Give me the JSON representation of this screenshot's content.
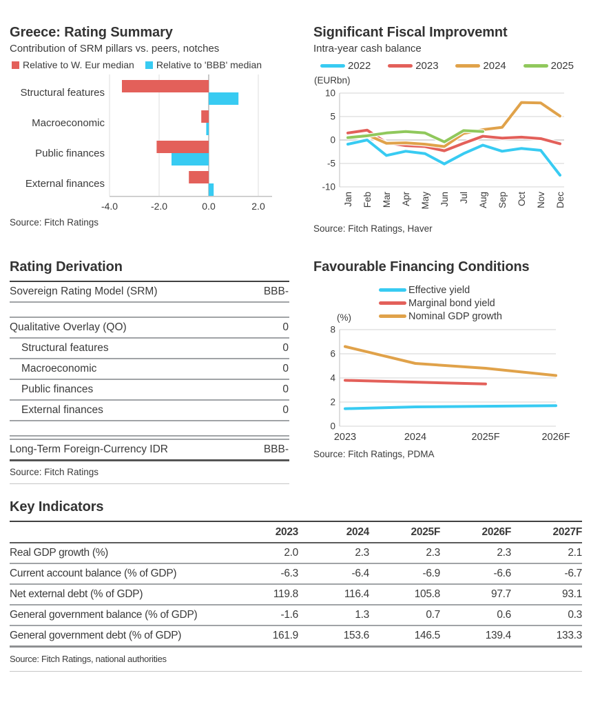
{
  "chart_data": [
    {
      "type": "bar",
      "title": "Greece: Rating Summary",
      "subtitle": "Contribution of SRM pillars vs. peers, notches",
      "categories": [
        "Structural features",
        "Macroeconomic",
        "Public finances",
        "External finances"
      ],
      "series": [
        {
          "name": "Relative to W. Eur median",
          "color": "#E3605A",
          "values": [
            -3.5,
            -0.3,
            -2.1,
            -0.8
          ]
        },
        {
          "name": "Relative to 'BBB' median",
          "color": "#38CBF2",
          "values": [
            1.2,
            -0.1,
            -1.5,
            0.2
          ]
        }
      ],
      "xlim": [
        -4,
        2.2
      ],
      "xticks": [
        -4,
        -2,
        0,
        2
      ],
      "xtick_labels": [
        "-4.0",
        "-2.0",
        "0.0",
        "2.0"
      ],
      "orientation": "horizontal",
      "source": "Source: Fitch Ratings"
    },
    {
      "type": "line",
      "title": "Significant Fiscal Improvemnt",
      "subtitle": "Intra-year cash balance",
      "unit": "(EURbn)",
      "x": [
        "Jan",
        "Feb",
        "Mar",
        "Apr",
        "May",
        "Jun",
        "Jul",
        "Aug",
        "Sep",
        "Oct",
        "Nov",
        "Dec"
      ],
      "ylim": [
        -10,
        10
      ],
      "yticks": [
        10,
        5,
        0,
        -5,
        -10
      ],
      "series": [
        {
          "name": "2022",
          "color": "#38CBF2",
          "values": [
            -0.9,
            0.0,
            -3.3,
            -2.4,
            -2.9,
            -5.1,
            -2.9,
            -1.1,
            -2.4,
            -1.8,
            -2.2,
            -7.5
          ]
        },
        {
          "name": "2023",
          "color": "#E3605A",
          "values": [
            1.5,
            2.1,
            -0.6,
            -1.2,
            -1.4,
            -2.3,
            -0.7,
            0.8,
            0.4,
            0.6,
            0.3,
            -0.8
          ]
        },
        {
          "name": "2024",
          "color": "#E0A24A",
          "values": [
            0.6,
            1.1,
            -0.7,
            -0.6,
            -0.9,
            -1.4,
            1.4,
            2.2,
            2.7,
            8.0,
            7.9,
            5.1
          ]
        },
        {
          "name": "2025",
          "color": "#90C85C",
          "values": [
            0.5,
            0.9,
            1.5,
            1.8,
            1.5,
            -0.4,
            2.0,
            1.8
          ]
        }
      ],
      "source": "Source: Fitch Ratings, Haver"
    },
    {
      "type": "line",
      "title": "Favourable Financing Conditions",
      "unit": "(%)",
      "x": [
        "2023",
        "2024",
        "2025F",
        "2026F"
      ],
      "ylim": [
        0,
        8
      ],
      "yticks": [
        0,
        2,
        4,
        6,
        8
      ],
      "series": [
        {
          "name": "Effective yield",
          "color": "#38CBF2",
          "values": [
            1.45,
            1.6,
            1.65,
            1.7
          ]
        },
        {
          "name": "Marginal bond yield",
          "color": "#E3605A",
          "values": [
            3.8,
            3.65,
            3.5
          ]
        },
        {
          "name": "Nominal GDP growth",
          "color": "#E0A24A",
          "values": [
            6.6,
            5.2,
            4.8,
            4.2
          ]
        }
      ],
      "source": "Source: Fitch Ratings, PDMA"
    }
  ],
  "derivation": {
    "title": "Rating Derivation",
    "rows": [
      {
        "label": "Sovereign Rating Model (SRM)",
        "value": "BBB-",
        "style": "plain"
      },
      {
        "style": "gap"
      },
      {
        "label": "Qualitative Overlay (QO)",
        "value": "0",
        "style": "plain"
      },
      {
        "label": "Structural features",
        "value": "0",
        "style": "indent"
      },
      {
        "label": "Macroeconomic",
        "value": "0",
        "style": "indent"
      },
      {
        "label": "Public finances",
        "value": "0",
        "style": "indent"
      },
      {
        "label": "External finances",
        "value": "0",
        "style": "indent"
      },
      {
        "style": "gap"
      },
      {
        "label": "Long-Term Foreign-Currency IDR",
        "value": "BBB-",
        "style": "final"
      }
    ],
    "source": "Source: Fitch Ratings"
  },
  "key_indicators": {
    "title": "Key Indicators",
    "columns": [
      "2023",
      "2024",
      "2025F",
      "2026F",
      "2027F"
    ],
    "rows": [
      {
        "label": "Real GDP growth (%)",
        "values": [
          "2.0",
          "2.3",
          "2.3",
          "2.3",
          "2.1"
        ]
      },
      {
        "label": "Current account balance (% of GDP)",
        "values": [
          "-6.3",
          "-6.4",
          "-6.9",
          "-6.6",
          "-6.7"
        ]
      },
      {
        "label": "Net external debt (% of GDP)",
        "values": [
          "119.8",
          "116.4",
          "105.8",
          "97.7",
          "93.1"
        ]
      },
      {
        "label": "General government balance (% of GDP)",
        "values": [
          "-1.6",
          "1.3",
          "0.7",
          "0.6",
          "0.3"
        ]
      },
      {
        "label": "General government debt (% of GDP)",
        "values": [
          "161.9",
          "153.6",
          "146.5",
          "139.4",
          "133.3"
        ]
      }
    ],
    "source": "Source: Fitch Ratings, national authorities"
  }
}
